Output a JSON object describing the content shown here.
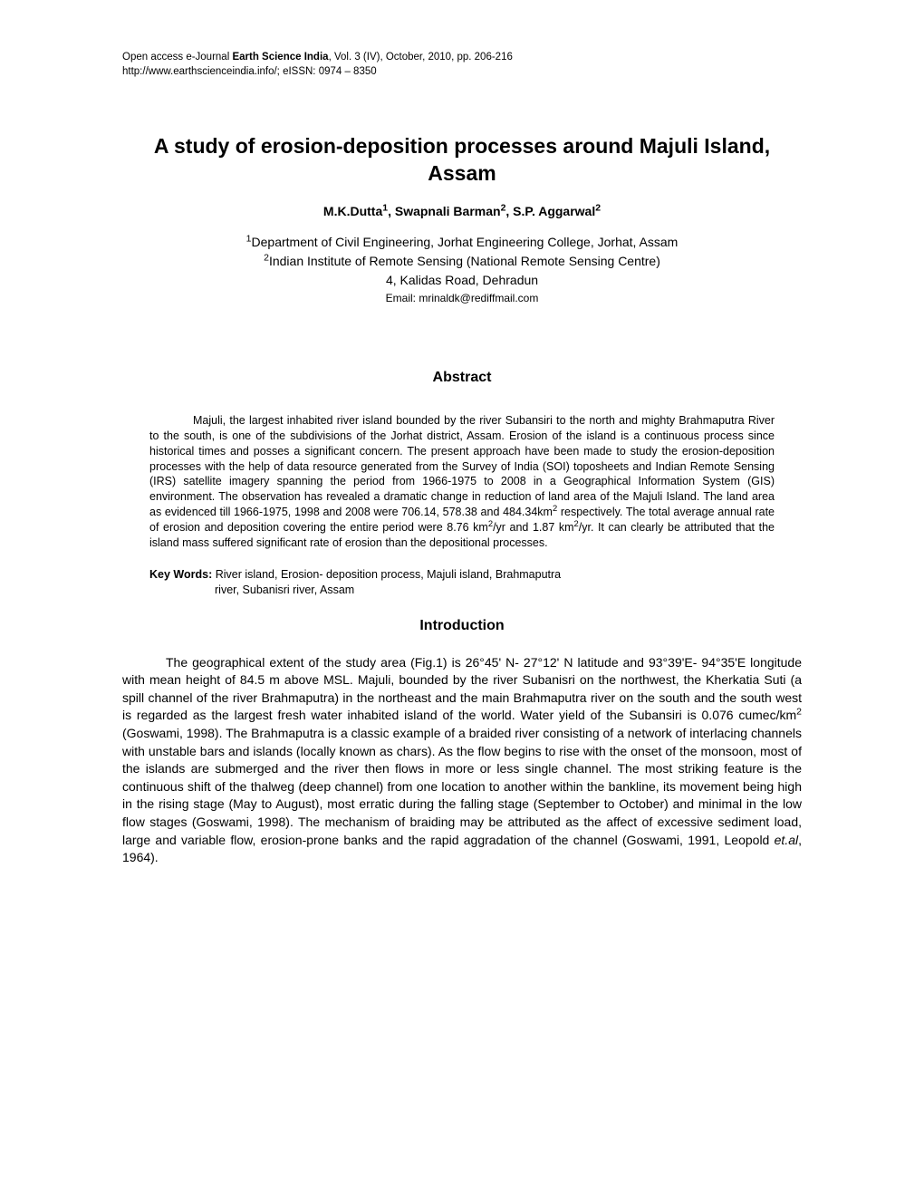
{
  "header": {
    "line1_prefix": "Open access e-Journal ",
    "line1_bold": "Earth Science India",
    "line1_suffix": ", Vol. 3 (IV), October, 2010, pp. 206-216",
    "line2": "http://www.earthscienceindia.info/; eISSN: 0974 – 8350"
  },
  "title": "A study of erosion-deposition processes around Majuli Island, Assam",
  "authors_html": "M.K.Dutta<sup>1</sup>, Swapnali Barman<sup>2</sup>, S.P. Aggarwal<sup>2</sup>",
  "affiliation_line1_html": "<sup>1</sup>Department of Civil Engineering, Jorhat Engineering College, Jorhat, Assam",
  "affiliation_line2_html": "<sup>2</sup>Indian Institute of Remote Sensing (National Remote Sensing Centre)",
  "affiliation_line3": "4, Kalidas Road, Dehradun",
  "email": "Email: mrinaldk@rediffmail.com",
  "abstract_heading": "Abstract",
  "abstract_body_html": "<span class=\"indent\"></span>Majuli, the largest inhabited river island bounded by the river Subansiri to the north and mighty Brahmaputra River to the south, is one of the subdivisions of the Jorhat district, Assam. Erosion of the island is a continuous process since historical times and posses a significant concern. The present approach have been made to study the erosion-deposition processes with the help of data resource generated from the Survey of India (SOI) toposheets and Indian Remote Sensing (IRS) satellite imagery spanning the period from 1966-1975 to 2008 in a Geographical Information System (GIS) environment. The observation has revealed a dramatic change in reduction of land area of the Majuli Island. The land area as evidenced till 1966-1975, 1998 and 2008 were 706.14, 578.38 and 484.34km<sup>2</sup> respectively. The total average annual rate of erosion and deposition covering the entire period were 8.76 km<sup>2</sup>/yr and 1.87 km<sup>2</sup>/yr. It can clearly be attributed that the island mass suffered significant rate of erosion than the depositional processes.",
  "keywords_label": "Key Words: ",
  "keywords_line1": "River island, Erosion- deposition process, Majuli island, Brahmaputra",
  "keywords_line2": "river, Subanisri river, Assam",
  "intro_heading": "Introduction",
  "intro_body_html": "<span class=\"indent\"></span>The geographical extent of the study area (Fig.1) is 26°45' N- 27°12' N latitude and 93°39'E- 94°35'E longitude with mean height of 84.5 m above MSL. Majuli, bounded by the river Subanisri on the northwest, the Kherkatia Suti (a spill channel of the river Brahmaputra) in the northeast and the main Brahmaputra river on the south and the south west is regarded as the largest fresh water inhabited island of the world. Water yield of the Subansiri is 0.076 cumec/km<sup>2</sup> (Goswami, 1998). The Brahmaputra is a classic example of a braided river consisting of a network of interlacing channels with unstable bars and islands (locally known as chars). As the flow begins to rise with the onset of the monsoon, most of the islands are submerged and the river then flows in more or less single channel. The most striking feature is the continuous shift of the thalweg (deep channel) from one location to another within the bankline, its movement being high in the rising stage (May to August), most erratic during the falling stage (September to October) and minimal in the low flow stages (Goswami, 1998). The mechanism of braiding may be attributed as the affect of excessive sediment load, large and variable flow, erosion-prone banks and the rapid aggradation of the channel (Goswami, 1991, Leopold <span class=\"italic\">et.al</span>, 1964)."
}
